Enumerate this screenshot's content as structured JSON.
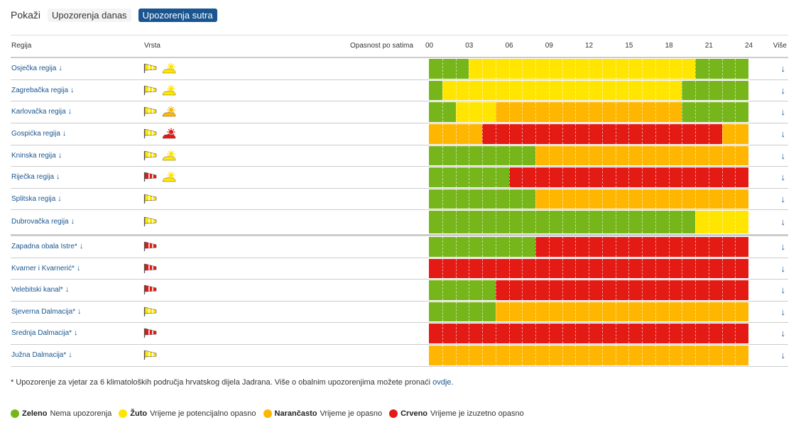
{
  "tabs": {
    "label": "Pokaži",
    "items": [
      {
        "label": "Upozorenja danas",
        "active": false
      },
      {
        "label": "Upozorenja sutra",
        "active": true
      }
    ]
  },
  "header": {
    "region": "Regija",
    "type": "Vrsta",
    "hazard": "Opasnost po satima",
    "hours": [
      "00",
      "03",
      "06",
      "09",
      "12",
      "15",
      "18",
      "21",
      "24"
    ],
    "more": "Više"
  },
  "colors": {
    "green": "#77b61a",
    "yellow": "#ffe500",
    "orange": "#feb600",
    "red": "#e31b14"
  },
  "regions": [
    {
      "name": "Osječka regija",
      "wind": "yellow",
      "heat": "yellow",
      "segments": [
        [
          "green",
          3
        ],
        [
          "yellow",
          17
        ],
        [
          "green",
          4
        ]
      ]
    },
    {
      "name": "Zagrebačka regija",
      "wind": "yellow",
      "heat": "yellow",
      "segments": [
        [
          "green",
          1
        ],
        [
          "yellow",
          18
        ],
        [
          "green",
          5
        ]
      ]
    },
    {
      "name": "Karlovačka regija",
      "wind": "yellow",
      "heat": "orange",
      "segments": [
        [
          "green",
          2
        ],
        [
          "yellow",
          3
        ],
        [
          "orange",
          14
        ],
        [
          "green",
          5
        ]
      ]
    },
    {
      "name": "Gospićka regija",
      "wind": "yellow",
      "heat": "red",
      "segments": [
        [
          "orange",
          4
        ],
        [
          "red",
          18
        ],
        [
          "orange",
          2
        ]
      ]
    },
    {
      "name": "Kninska regija",
      "wind": "yellow",
      "heat": "yellow",
      "segments": [
        [
          "green",
          8
        ],
        [
          "orange",
          16
        ]
      ]
    },
    {
      "name": "Riječka regija",
      "wind": "red",
      "heat": "yellow",
      "segments": [
        [
          "green",
          6
        ],
        [
          "red",
          18
        ]
      ]
    },
    {
      "name": "Splitska regija",
      "wind": "yellow",
      "heat": null,
      "segments": [
        [
          "green",
          8
        ],
        [
          "orange",
          16
        ]
      ]
    },
    {
      "name": "Dubrovačka regija",
      "wind": "yellow",
      "heat": null,
      "segments": [
        [
          "green",
          20
        ],
        [
          "yellow",
          4
        ]
      ]
    },
    {
      "name": "Zapadna obala Istre*",
      "wind": "red",
      "heat": null,
      "segments": [
        [
          "green",
          8
        ],
        [
          "red",
          16
        ]
      ]
    },
    {
      "name": "Kvarner i Kvarnerić*",
      "wind": "red",
      "heat": null,
      "segments": [
        [
          "red",
          24
        ]
      ]
    },
    {
      "name": "Velebitski kanal*",
      "wind": "red",
      "heat": null,
      "segments": [
        [
          "green",
          5
        ],
        [
          "red",
          19
        ]
      ]
    },
    {
      "name": "Sjeverna Dalmacija*",
      "wind": "yellow",
      "heat": null,
      "segments": [
        [
          "green",
          5
        ],
        [
          "orange",
          19
        ]
      ]
    },
    {
      "name": "Srednja Dalmacija*",
      "wind": "red",
      "heat": null,
      "segments": [
        [
          "red",
          24
        ]
      ]
    },
    {
      "name": "Južna Dalmacija*",
      "wind": "yellow",
      "heat": null,
      "segments": [
        [
          "orange",
          24
        ]
      ]
    }
  ],
  "arrow_glyph": "↓",
  "footnote": {
    "text": "* Upozorenje za vjetar za 6 klimatoloških područja hrvatskog dijela Jadrana. Više o obalnim upozorenjima možete pronaći ",
    "link": "ovdje",
    "end": "."
  },
  "legend": [
    {
      "color": "green",
      "name": "Zeleno",
      "desc": "Nema upozorenja"
    },
    {
      "color": "yellow",
      "name": "Žuto",
      "desc": "Vrijeme je potencijalno opasno"
    },
    {
      "color": "orange",
      "name": "Narančasto",
      "desc": "Vrijeme je opasno"
    },
    {
      "color": "red",
      "name": "Crveno",
      "desc": "Vrijeme je izuzetno opasno"
    }
  ]
}
